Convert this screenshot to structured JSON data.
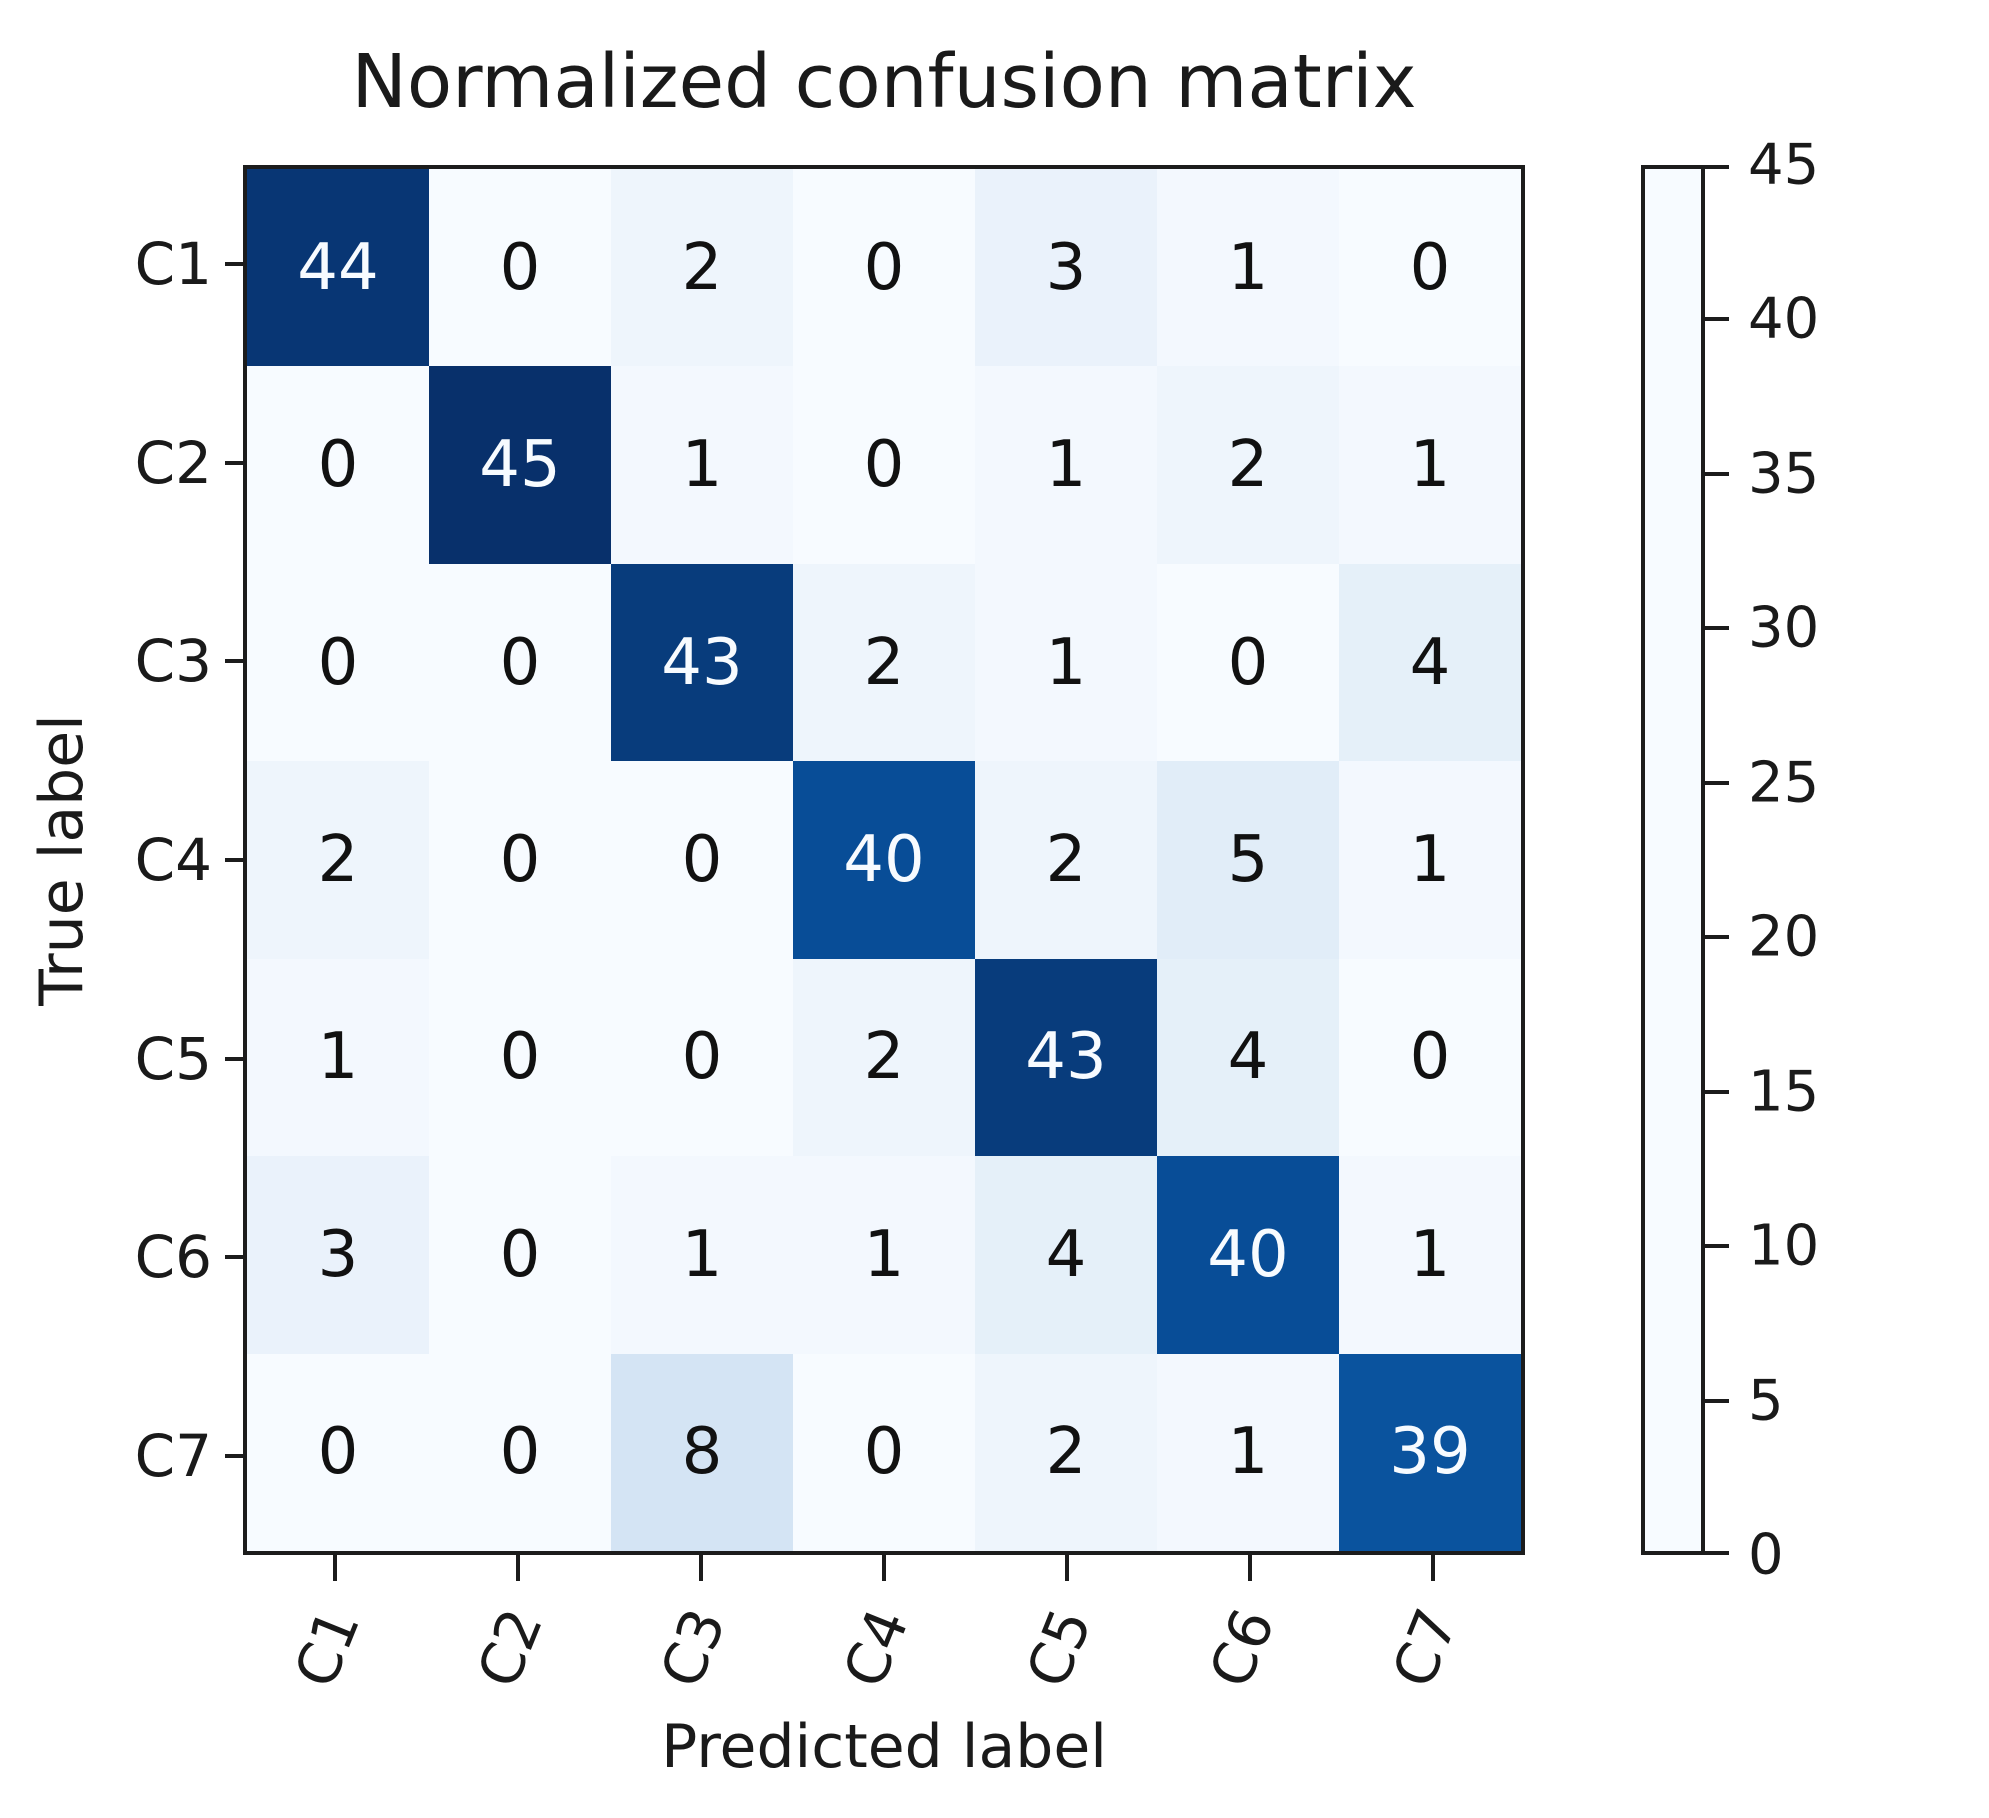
{
  "chart_data": {
    "type": "heatmap",
    "title": "Normalized confusion matrix",
    "xlabel": "Predicted label",
    "ylabel": "True label",
    "x_tick_labels": [
      "C1",
      "C2",
      "C3",
      "C4",
      "C5",
      "C6",
      "C7"
    ],
    "y_tick_labels": [
      "C1",
      "C2",
      "C3",
      "C4",
      "C5",
      "C6",
      "C7"
    ],
    "matrix": [
      [
        44,
        0,
        2,
        0,
        3,
        1,
        0
      ],
      [
        0,
        45,
        1,
        0,
        1,
        2,
        1
      ],
      [
        0,
        0,
        43,
        2,
        1,
        0,
        4
      ],
      [
        2,
        0,
        0,
        40,
        2,
        5,
        1
      ],
      [
        1,
        0,
        0,
        2,
        43,
        4,
        0
      ],
      [
        3,
        0,
        1,
        1,
        4,
        40,
        1
      ],
      [
        0,
        0,
        8,
        0,
        2,
        1,
        39
      ]
    ],
    "vmin": 0,
    "vmax": 45,
    "colorbar_ticks": [
      45,
      40,
      35,
      30,
      25,
      20,
      15,
      10,
      5,
      0
    ],
    "colormap": "Blues",
    "colors": {
      "cmap_anchors": [
        "#f7fbff",
        "#deebf7",
        "#c6dbef",
        "#9ecae1",
        "#6baed6",
        "#4292c6",
        "#2171b5",
        "#08519c",
        "#08306b"
      ],
      "cell_text_dark": "#111111",
      "cell_text_light": "#f7fbff",
      "axis": "#1c1c1c"
    },
    "legend_position": "right-colorbar",
    "grid": false
  }
}
